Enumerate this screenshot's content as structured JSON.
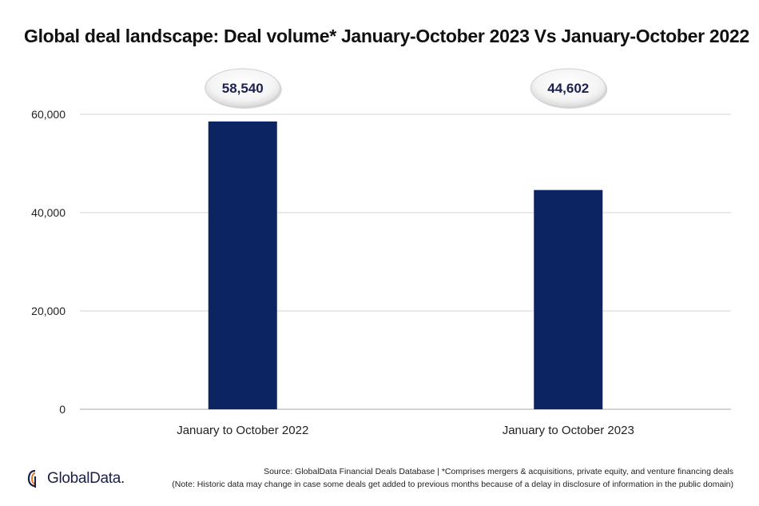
{
  "chart_data": {
    "type": "bar",
    "title": "Global deal landscape: Deal volume* January-October 2023 Vs January-October 2022",
    "categories": [
      "January to October 2022",
      "January to October 2023"
    ],
    "values": [
      58540,
      44602
    ],
    "value_labels": [
      "58,540",
      "44,602"
    ],
    "ylim": [
      0,
      60000
    ],
    "yticks": [
      0,
      20000,
      40000,
      60000
    ],
    "ytick_labels": [
      "0",
      "20,000",
      "40,000",
      "60,000"
    ],
    "xlabel": "",
    "ylabel": "",
    "grid": true,
    "bar_color": "#0c2461",
    "grid_color": "#dddddd"
  },
  "footer": {
    "logo_text": "GlobalData.",
    "logo_icon": "globaldata-logo-icon",
    "source": "Source: GlobalData Financial Deals Database | *Comprises mergers & acquisitions, private equity, and venture financing deals",
    "note": "(Note: Historic data may change in case some deals get added to previous months because of a delay in disclosure of information in the public domain)"
  }
}
